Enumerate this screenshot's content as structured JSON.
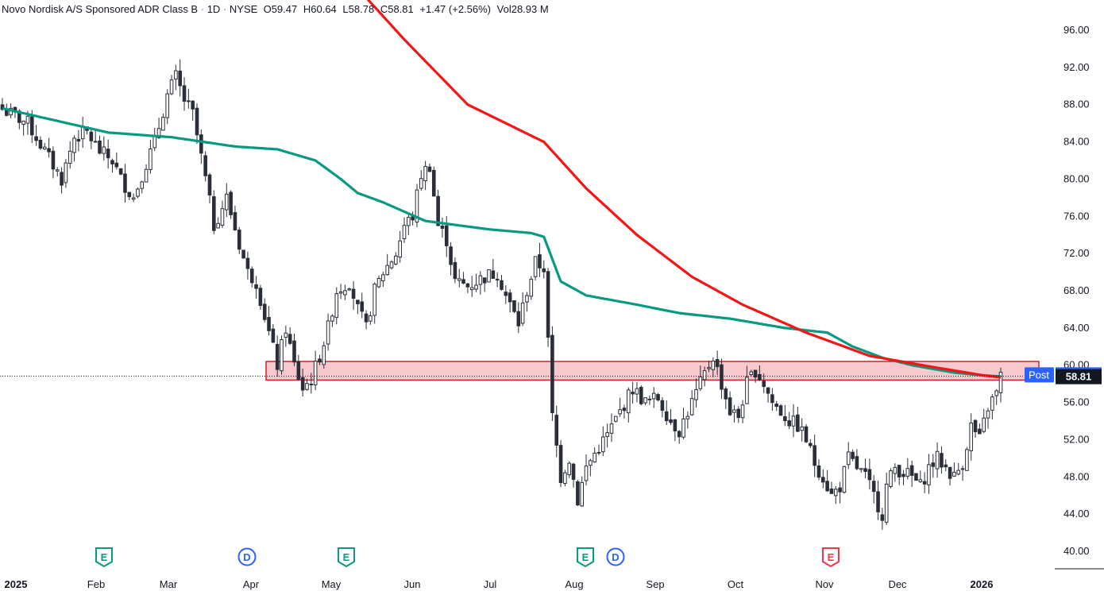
{
  "header": {
    "symbol": "Novo Nordisk A/S Sponsored ADR Class B",
    "interval": "1D",
    "exchange": "NYSE",
    "open_label": "O",
    "open": "59.47",
    "high_label": "H",
    "high": "60.64",
    "low_label": "L",
    "low": "58.78",
    "close_label": "C",
    "close": "58.81",
    "change": "+1.47 (+2.56%)",
    "vol_label": "Vol",
    "vol": "28.93 M",
    "sep": "·"
  },
  "colors": {
    "candle": "#2a2e39",
    "ma_fast": "#089981",
    "ma_slow": "#f21616",
    "zone_fill": "#f7c8cc",
    "zone_border": "#d42027",
    "post_badge": "#2962ff",
    "last_badge": "#131722",
    "earnings": "#089981",
    "earnings_neg": "#f23645",
    "dividend": "#2962ff"
  },
  "chart_data": {
    "type": "candlestick",
    "y_axis": {
      "ticks": [
        "96.00",
        "92.00",
        "88.00",
        "84.00",
        "80.00",
        "76.00",
        "72.00",
        "68.00",
        "64.00",
        "60.00",
        "56.00",
        "52.00",
        "48.00",
        "44.00",
        "40.00"
      ],
      "range": [
        39,
        98.5
      ],
      "position": "right"
    },
    "x_axis": {
      "ticks": [
        "2025",
        "Feb",
        "Mar",
        "Apr",
        "May",
        "Jun",
        "Jul",
        "Aug",
        "Sep",
        "Oct",
        "Nov",
        "Dec",
        "2026"
      ]
    },
    "post_label": "Post",
    "post_price": "58.92",
    "last_price": "58.81",
    "zone": {
      "low": 58.4,
      "high": 60.4
    },
    "price_path": [
      [
        0,
        87.5
      ],
      [
        6,
        86
      ],
      [
        10,
        83
      ],
      [
        14,
        80
      ],
      [
        17,
        84.5
      ],
      [
        20,
        85
      ],
      [
        23,
        83
      ],
      [
        26,
        82
      ],
      [
        28,
        80
      ],
      [
        31,
        78
      ],
      [
        33,
        80.5
      ],
      [
        36,
        84
      ],
      [
        39,
        89
      ],
      [
        41,
        91
      ],
      [
        43,
        88.5
      ],
      [
        45,
        87
      ],
      [
        48,
        80
      ],
      [
        50,
        75
      ],
      [
        53,
        78
      ],
      [
        56,
        73
      ],
      [
        58,
        70
      ],
      [
        60,
        69
      ],
      [
        63,
        63.5
      ],
      [
        65,
        60
      ],
      [
        67,
        64
      ],
      [
        69,
        60
      ],
      [
        71,
        57.5
      ],
      [
        73,
        58.5
      ],
      [
        75,
        61
      ],
      [
        77,
        64
      ],
      [
        79,
        68
      ],
      [
        82,
        69
      ],
      [
        84,
        66
      ],
      [
        86,
        64
      ],
      [
        88,
        68
      ],
      [
        90,
        70
      ],
      [
        93,
        72
      ],
      [
        95,
        75
      ],
      [
        97,
        76
      ],
      [
        99,
        80.5
      ],
      [
        101,
        81.5
      ],
      [
        103,
        75
      ],
      [
        105,
        73.5
      ],
      [
        107,
        69
      ],
      [
        110,
        68.5
      ],
      [
        114,
        69.5
      ],
      [
        117,
        70
      ],
      [
        119,
        67.5
      ],
      [
        122,
        64.5
      ],
      [
        124,
        68
      ],
      [
        126,
        71
      ],
      [
        128,
        70.5
      ],
      [
        130,
        54.5
      ],
      [
        132,
        48
      ],
      [
        134,
        50
      ],
      [
        136,
        45.5
      ],
      [
        138,
        49
      ],
      [
        140,
        50.5
      ],
      [
        143,
        52.5
      ],
      [
        146,
        55
      ],
      [
        149,
        57.5
      ],
      [
        152,
        56
      ],
      [
        155,
        56.5
      ],
      [
        158,
        54
      ],
      [
        160,
        53
      ],
      [
        162,
        55
      ],
      [
        164,
        57
      ],
      [
        166,
        59
      ],
      [
        168,
        61
      ],
      [
        170,
        58
      ],
      [
        172,
        55
      ],
      [
        174,
        54.5
      ],
      [
        176,
        58
      ],
      [
        178,
        59.5
      ],
      [
        180,
        58
      ],
      [
        182,
        56
      ],
      [
        184,
        55
      ],
      [
        186,
        54
      ],
      [
        188,
        53.5
      ],
      [
        190,
        52
      ],
      [
        192,
        49.5
      ],
      [
        194,
        48
      ],
      [
        196,
        46
      ],
      [
        198,
        47
      ],
      [
        200,
        50
      ],
      [
        202,
        49
      ],
      [
        204,
        48
      ],
      [
        206,
        46
      ],
      [
        208,
        44
      ],
      [
        209,
        47
      ],
      [
        211,
        49
      ],
      [
        213,
        48.5
      ],
      [
        215,
        48
      ],
      [
        217,
        47
      ],
      [
        219,
        49
      ],
      [
        221,
        50
      ],
      [
        223,
        49
      ],
      [
        225,
        48
      ],
      [
        227,
        49.5
      ],
      [
        229,
        53.5
      ],
      [
        231,
        52
      ],
      [
        233,
        55.5
      ],
      [
        235,
        57
      ],
      [
        236,
        58.8
      ]
    ],
    "ma_fast_path": [
      [
        0,
        87.6
      ],
      [
        25,
        85
      ],
      [
        40,
        84.5
      ],
      [
        55,
        83.5
      ],
      [
        65,
        83.2
      ],
      [
        74,
        82
      ],
      [
        80,
        80
      ],
      [
        84,
        78.5
      ],
      [
        90,
        77.5
      ],
      [
        100,
        75.5
      ],
      [
        115,
        74.6
      ],
      [
        125,
        74.2
      ],
      [
        128,
        73.8
      ],
      [
        132,
        69
      ],
      [
        138,
        67.5
      ],
      [
        150,
        66.5
      ],
      [
        160,
        65.6
      ],
      [
        172,
        65
      ],
      [
        185,
        64
      ],
      [
        195,
        63.5
      ],
      [
        201,
        62
      ],
      [
        208,
        60.8
      ],
      [
        215,
        60
      ],
      [
        225,
        59.2
      ],
      [
        232,
        58.9
      ],
      [
        236,
        58.8
      ]
    ],
    "ma_slow_path": [
      [
        85,
        100
      ],
      [
        95,
        95
      ],
      [
        110,
        88
      ],
      [
        128,
        84
      ],
      [
        138,
        79
      ],
      [
        150,
        74
      ],
      [
        163,
        69.5
      ],
      [
        175,
        66.5
      ],
      [
        190,
        63.5
      ],
      [
        205,
        61
      ],
      [
        220,
        59.8
      ],
      [
        228,
        59.2
      ],
      [
        232,
        58.9
      ],
      [
        236,
        58.7
      ]
    ],
    "event_markers": [
      {
        "label": "E",
        "type": "earnings",
        "idx": 24
      },
      {
        "label": "D",
        "type": "dividend",
        "idx": 57
      },
      {
        "label": "E",
        "type": "earnings",
        "idx": 81
      },
      {
        "label": "E",
        "type": "earnings",
        "idx": 137
      },
      {
        "label": "D",
        "type": "dividend",
        "idx": 146
      },
      {
        "label": "E",
        "type": "earnings_neg",
        "idx": 198
      }
    ]
  }
}
